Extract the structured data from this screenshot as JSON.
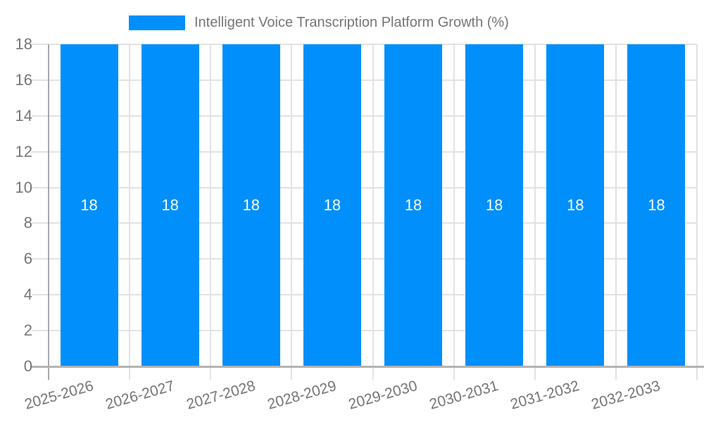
{
  "chart_data": {
    "type": "bar",
    "title": "Intelligent Voice Transcription Platform Growth (%)",
    "legend": {
      "position": "top",
      "label": "Intelligent Voice Transcription Platform Growth (%)"
    },
    "categories": [
      "2025-2026",
      "2026-2027",
      "2027-2028",
      "2028-2029",
      "2029-2030",
      "2030-2031",
      "2031-2032",
      "2032-2033"
    ],
    "values": [
      18,
      18,
      18,
      18,
      18,
      18,
      18,
      18
    ],
    "value_labels": [
      "18",
      "18",
      "18",
      "18",
      "18",
      "18",
      "18",
      "18"
    ],
    "xlabel": "",
    "ylabel": "",
    "ylim": [
      0,
      18
    ],
    "yticks": [
      0,
      2,
      4,
      6,
      8,
      10,
      12,
      14,
      16,
      18
    ],
    "grid": true,
    "x_label_rotation_deg": -16,
    "colors": {
      "bar": "#008FFB",
      "bar_value_text": "#FFFFFF",
      "grid_line": "#E2E2E2",
      "y_axis_line": "#A8A8A8",
      "x_axis_line": "#B3B3B3",
      "tick_text": "#757575",
      "legend_text": "#757575",
      "background": "#FFFFFF"
    }
  }
}
